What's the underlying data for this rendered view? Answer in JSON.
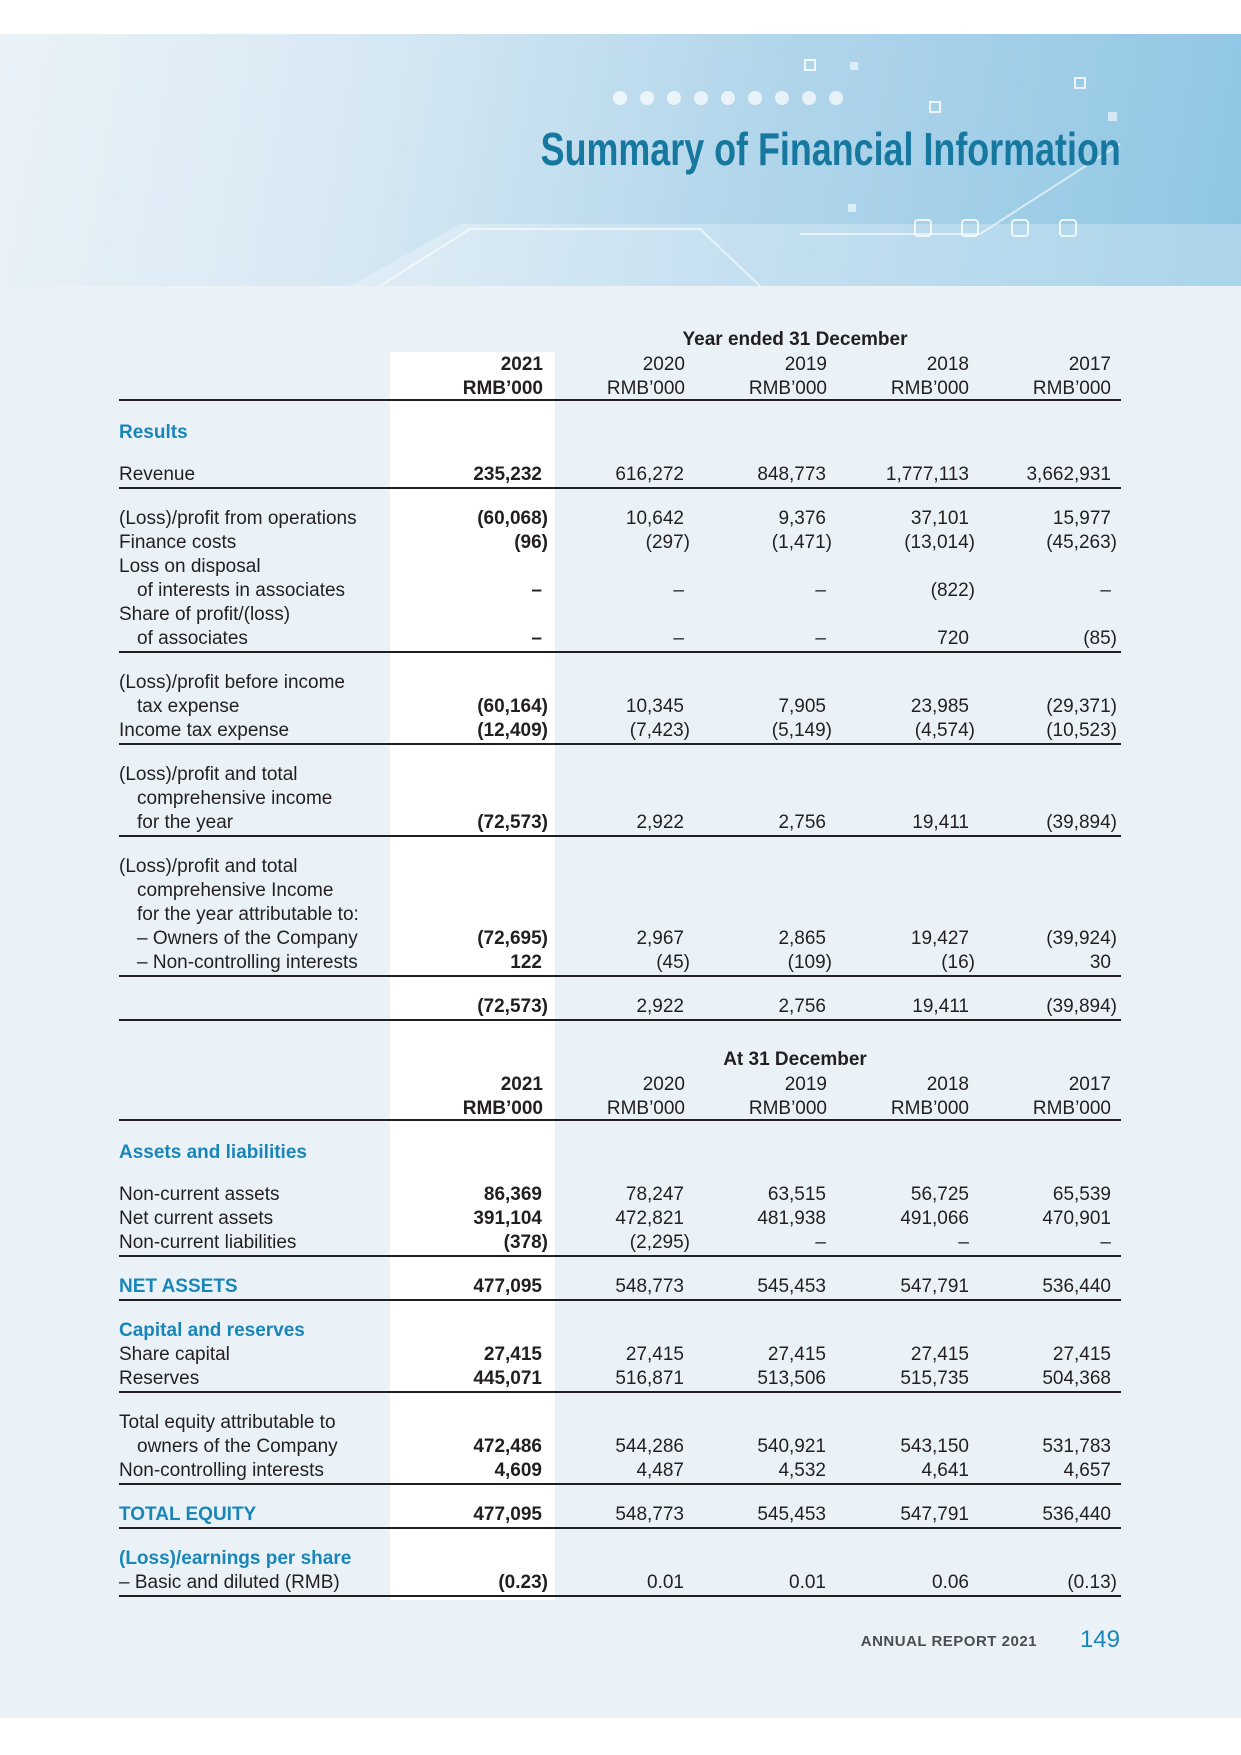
{
  "header": {
    "title": "Summary of Financial Information"
  },
  "table1": {
    "caption": "Year ended 31 December",
    "years": [
      "2021",
      "2020",
      "2019",
      "2018",
      "2017"
    ],
    "units": [
      "RMB’000",
      "RMB’000",
      "RMB’000",
      "RMB’000",
      "RMB’000"
    ],
    "blocks": [
      {
        "heading": "Results",
        "rows": [
          {
            "label": [
              "Revenue"
            ],
            "values": [
              "235,232",
              "616,272",
              "848,773",
              "1,777,113",
              "3,662,931"
            ]
          }
        ]
      },
      {
        "rows": [
          {
            "label": [
              "(Loss)/profit from operations"
            ],
            "values": [
              "(60,068)",
              "10,642",
              "9,376",
              "37,101",
              "15,977"
            ]
          },
          {
            "label": [
              "Finance costs"
            ],
            "values": [
              "(96)",
              "(297)",
              "(1,471)",
              "(13,014)",
              "(45,263)"
            ]
          },
          {
            "label": [
              "Loss on disposal",
              "of interests in associates"
            ],
            "values": [
              "–",
              "–",
              "–",
              "(822)",
              "–"
            ]
          },
          {
            "label": [
              "Share of profit/(loss)",
              "of associates"
            ],
            "values": [
              "–",
              "–",
              "–",
              "720",
              "(85)"
            ]
          }
        ]
      },
      {
        "rows": [
          {
            "label": [
              "(Loss)/profit before income",
              "tax expense"
            ],
            "values": [
              "(60,164)",
              "10,345",
              "7,905",
              "23,985",
              "(29,371)"
            ]
          },
          {
            "label": [
              "Income tax expense"
            ],
            "values": [
              "(12,409)",
              "(7,423)",
              "(5,149)",
              "(4,574)",
              "(10,523)"
            ]
          }
        ]
      },
      {
        "rows": [
          {
            "label": [
              "(Loss)/profit and total",
              "comprehensive income",
              "for the year"
            ],
            "values": [
              "(72,573)",
              "2,922",
              "2,756",
              "19,411",
              "(39,894)"
            ]
          }
        ]
      },
      {
        "rows": [
          {
            "label": [
              "(Loss)/profit and total",
              "comprehensive Income",
              "for the year attributable to:"
            ],
            "sub_rows": [
              {
                "label": [
                  "– Owners of the Company"
                ],
                "values": [
                  "(72,695)",
                  "2,967",
                  "2,865",
                  "19,427",
                  "(39,924)"
                ]
              },
              {
                "label": [
                  "– Non-controlling interests"
                ],
                "values": [
                  "122",
                  "(45)",
                  "(109)",
                  "(16)",
                  "30"
                ]
              }
            ]
          }
        ]
      },
      {
        "rows": [
          {
            "values": [
              "(72,573)",
              "2,922",
              "2,756",
              "19,411",
              "(39,894)"
            ]
          }
        ]
      }
    ]
  },
  "table2": {
    "caption": "At 31 December",
    "years": [
      "2021",
      "2020",
      "2019",
      "2018",
      "2017"
    ],
    "units": [
      "RMB’000",
      "RMB’000",
      "RMB’000",
      "RMB’000",
      "RMB’000"
    ],
    "blocks": [
      {
        "heading": "Assets and liabilities",
        "rows": [
          {
            "label": [
              "Non-current assets"
            ],
            "values": [
              "86,369",
              "78,247",
              "63,515",
              "56,725",
              "65,539"
            ]
          },
          {
            "label": [
              "Net current assets"
            ],
            "values": [
              "391,104",
              "472,821",
              "481,938",
              "491,066",
              "470,901"
            ]
          },
          {
            "label": [
              "Non-current liabilities"
            ],
            "values": [
              "(378)",
              "(2,295)",
              "–",
              "–",
              "–"
            ]
          }
        ]
      },
      {
        "rows": [
          {
            "label": [
              "NET ASSETS"
            ],
            "color": "#1a86b8",
            "values": [
              "477,095",
              "548,773",
              "545,453",
              "547,791",
              "536,440"
            ]
          }
        ]
      },
      {
        "heading": "Capital and reserves",
        "rows": [
          {
            "label": [
              "Share capital"
            ],
            "values": [
              "27,415",
              "27,415",
              "27,415",
              "27,415",
              "27,415"
            ]
          },
          {
            "label": [
              "Reserves"
            ],
            "values": [
              "445,071",
              "516,871",
              "513,506",
              "515,735",
              "504,368"
            ]
          }
        ]
      },
      {
        "rows": [
          {
            "label": [
              "Total equity attributable to",
              "owners of the Company"
            ],
            "values": [
              "472,486",
              "544,286",
              "540,921",
              "543,150",
              "531,783"
            ]
          },
          {
            "label": [
              "Non-controlling interests"
            ],
            "values": [
              "4,609",
              "4,487",
              "4,532",
              "4,641",
              "4,657"
            ]
          }
        ]
      },
      {
        "rows": [
          {
            "label": [
              "TOTAL EQUITY"
            ],
            "color": "#1a86b8",
            "values": [
              "477,095",
              "548,773",
              "545,453",
              "547,791",
              "536,440"
            ]
          }
        ]
      },
      {
        "heading": "(Loss)/earnings per share",
        "rows": [
          {
            "label": [
              "– Basic and diluted (RMB)"
            ],
            "values": [
              "(0.23)",
              "0.01",
              "0.01",
              "0.06",
              "(0.13)"
            ]
          }
        ]
      }
    ]
  },
  "footer": {
    "report": "ANNUAL REPORT 2021",
    "page": "149"
  }
}
